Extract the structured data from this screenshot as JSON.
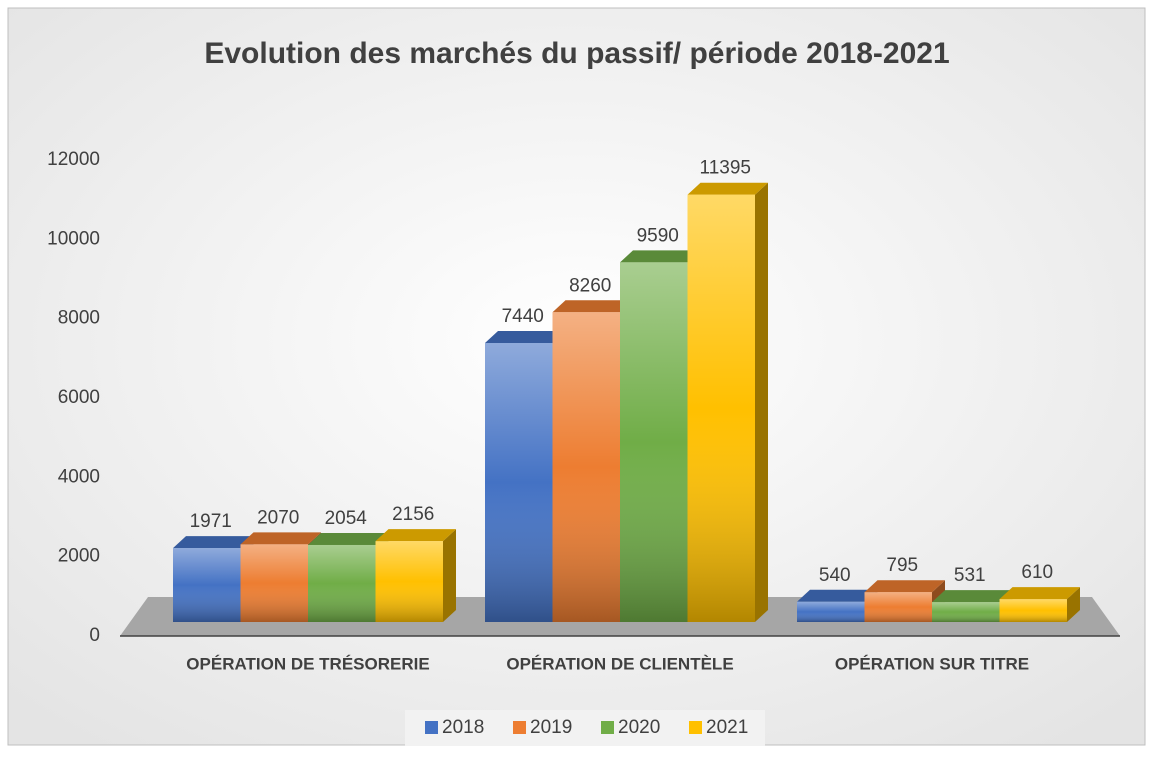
{
  "chart_data": {
    "type": "bar",
    "title": "Evolution des marchés du passif/ période 2018-2021",
    "categories": [
      "OPÉRATION DE TRÉSORERIE",
      "OPÉRATION DE CLIENTÈLE",
      "OPÉRATION SUR TITRE"
    ],
    "series": [
      {
        "name": "2018",
        "color": "#4472c4",
        "values": [
          1971,
          7440,
          540
        ]
      },
      {
        "name": "2019",
        "color": "#ed7d31",
        "values": [
          2070,
          8260,
          795
        ]
      },
      {
        "name": "2020",
        "color": "#70ad47",
        "values": [
          2054,
          9590,
          531
        ]
      },
      {
        "name": "2021",
        "color": "#ffc000",
        "values": [
          2156,
          11395,
          610
        ]
      }
    ],
    "ylim": [
      0,
      12000
    ],
    "yticks": [
      0,
      2000,
      4000,
      6000,
      8000,
      10000,
      12000
    ],
    "legend": "bottom"
  }
}
